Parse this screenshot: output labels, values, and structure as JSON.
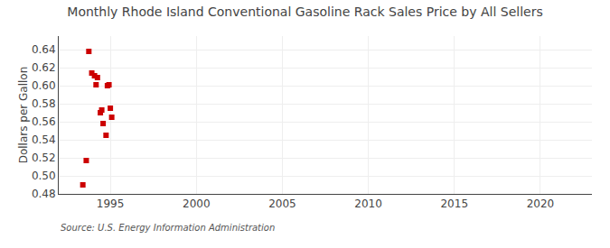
{
  "chart_data": {
    "type": "scatter",
    "title": "Monthly Rhode Island Conventional Gasoline Rack Sales Price by All Sellers",
    "ylabel": "Dollars per Gallon",
    "source": "Source: U.S. Energy Information Administration",
    "x": [
      1993.4,
      1993.6,
      1993.75,
      1993.92,
      1994.08,
      1994.17,
      1994.25,
      1994.42,
      1994.5,
      1994.58,
      1994.75,
      1994.83,
      1994.92,
      1995.0,
      1995.08
    ],
    "values": [
      0.49,
      0.517,
      0.638,
      0.614,
      0.611,
      0.601,
      0.609,
      0.57,
      0.573,
      0.558,
      0.545,
      0.6,
      0.601,
      0.575,
      0.565
    ],
    "color": "#cc0000",
    "marker": "square",
    "xlim": [
      1992.0,
      2023.0
    ],
    "ylim": [
      0.48,
      0.655
    ],
    "xticks": [
      1995,
      2000,
      2005,
      2010,
      2015,
      2020
    ],
    "yticks": [
      0.48,
      {
        "value": 0.5,
        "label": "0.50"
      },
      0.52,
      0.54,
      0.56,
      0.58,
      {
        "value": 0.6,
        "label": "0.60"
      },
      0.62,
      0.64
    ],
    "grid": true
  }
}
